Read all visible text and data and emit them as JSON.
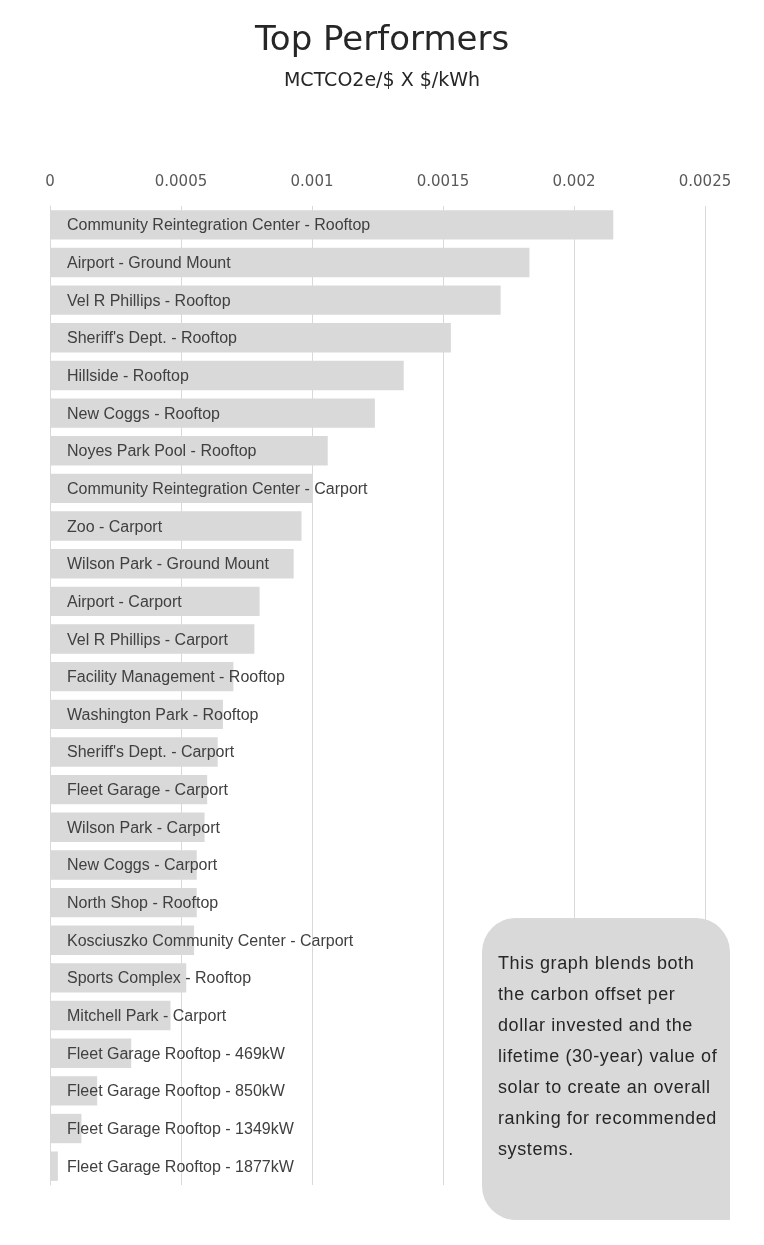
{
  "chart_data": {
    "type": "bar",
    "orientation": "horizontal",
    "title": "Top Performers",
    "subtitle": "MCTCO2e/$ X $/kWh",
    "categories": [
      "Community Reintegration Center - Rooftop",
      "Airport - Ground Mount",
      "Vel R Phillips - Rooftop",
      "Sheriff's Dept. - Rooftop",
      "Hillside - Rooftop",
      "New Coggs - Rooftop",
      "Noyes Park Pool - Rooftop",
      "Community Reintegration Center - Carport",
      "Zoo - Carport",
      "Wilson Park - Ground Mount",
      "Airport - Carport",
      "Vel R Phillips - Carport",
      "Facility Management - Rooftop",
      "Washington Park - Rooftop",
      "Sheriff's Dept. - Carport",
      "Fleet Garage - Carport",
      "Wilson Park - Carport",
      "New Coggs - Carport",
      "North Shop - Rooftop",
      "Kosciuszko Community Center - Carport",
      "Sports Complex - Rooftop",
      "Mitchell Park - Carport",
      "Fleet Garage Rooftop - 469kW",
      "Fleet Garage Rooftop - 850kW",
      "Fleet Garage Rooftop - 1349kW",
      "Fleet Garage Rooftop - 1877kW"
    ],
    "values": [
      0.00215,
      0.00183,
      0.00172,
      0.00153,
      0.00135,
      0.00124,
      0.00106,
      0.001,
      0.00096,
      0.00093,
      0.0008,
      0.00078,
      0.0007,
      0.00066,
      0.00064,
      0.0006,
      0.00059,
      0.00056,
      0.00056,
      0.00055,
      0.00052,
      0.00046,
      0.00031,
      0.00018,
      0.00012,
      3e-05
    ],
    "color": "#d9d9d9",
    "xlim": [
      0,
      0.0025
    ],
    "xticks": [
      0,
      0.0005,
      0.001,
      0.0015,
      0.002,
      0.0025
    ],
    "grid": "x",
    "annotations": [
      "This graph blends both the carbon offset per dollar invested and the lifetime (30-year) value of solar to create an overall ranking for recommended systems."
    ]
  }
}
